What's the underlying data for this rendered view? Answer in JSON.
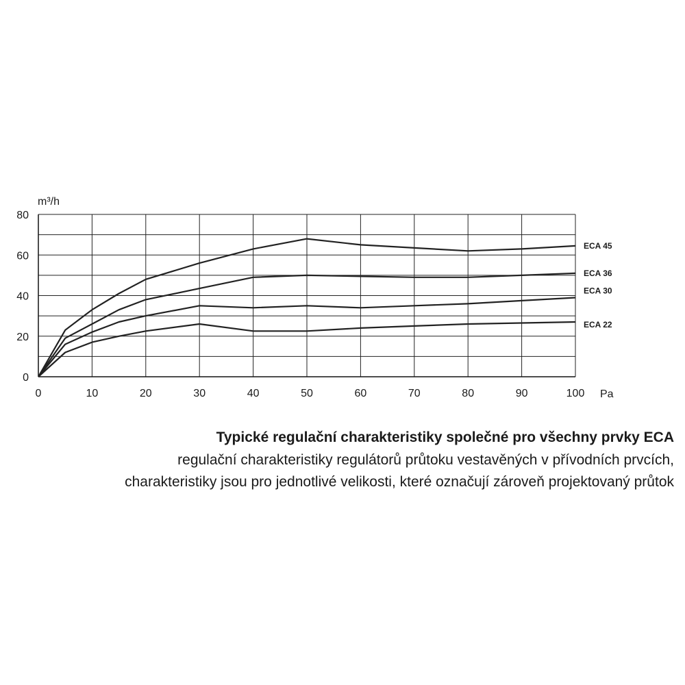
{
  "chart_data": {
    "type": "line",
    "ylabel": "m³/h",
    "xlabel": "Pa",
    "xlim": [
      0,
      100
    ],
    "ylim": [
      0,
      80
    ],
    "xticks": [
      0,
      10,
      20,
      30,
      40,
      50,
      60,
      70,
      80,
      90,
      100
    ],
    "yticks": [
      0,
      20,
      40,
      60,
      80
    ],
    "x_gridlines": [
      0,
      10,
      20,
      30,
      40,
      50,
      60,
      70,
      80,
      90,
      100
    ],
    "y_gridlines": [
      0,
      10,
      20,
      30,
      40,
      50,
      60,
      70,
      80
    ],
    "grid": true,
    "series": [
      {
        "name": "ECA 45",
        "points": [
          [
            0,
            0
          ],
          [
            5,
            23
          ],
          [
            10,
            33
          ],
          [
            15,
            41
          ],
          [
            20,
            48
          ],
          [
            30,
            56
          ],
          [
            40,
            63
          ],
          [
            50,
            68
          ],
          [
            60,
            65
          ],
          [
            70,
            63.5
          ],
          [
            80,
            62
          ],
          [
            90,
            63
          ],
          [
            100,
            64.5
          ]
        ]
      },
      {
        "name": "ECA 36",
        "points": [
          [
            0,
            0
          ],
          [
            5,
            19
          ],
          [
            10,
            26
          ],
          [
            15,
            33
          ],
          [
            20,
            38
          ],
          [
            30,
            43.5
          ],
          [
            40,
            49
          ],
          [
            50,
            50
          ],
          [
            60,
            49.5
          ],
          [
            70,
            49
          ],
          [
            80,
            49
          ],
          [
            90,
            50
          ],
          [
            100,
            51
          ]
        ]
      },
      {
        "name": "ECA 30",
        "points": [
          [
            0,
            0
          ],
          [
            5,
            16
          ],
          [
            10,
            22
          ],
          [
            15,
            27
          ],
          [
            20,
            30
          ],
          [
            30,
            35
          ],
          [
            40,
            34
          ],
          [
            50,
            35
          ],
          [
            60,
            34
          ],
          [
            70,
            35
          ],
          [
            80,
            36
          ],
          [
            90,
            37.5
          ],
          [
            100,
            39
          ]
        ]
      },
      {
        "name": "ECA 22",
        "points": [
          [
            0,
            0
          ],
          [
            5,
            12
          ],
          [
            10,
            17
          ],
          [
            15,
            20
          ],
          [
            20,
            22.5
          ],
          [
            30,
            26
          ],
          [
            40,
            22.5
          ],
          [
            50,
            22.5
          ],
          [
            60,
            24
          ],
          [
            70,
            25
          ],
          [
            80,
            26
          ],
          [
            90,
            26.5
          ],
          [
            100,
            27
          ]
        ]
      }
    ]
  },
  "caption": {
    "title": "Typické regulační charakteristiky společné pro všechny prvky ECA",
    "line1": "regulační charakteristiky regulátorů průtoku vestavěných v přívodních prvcích,",
    "line2": "charakteristiky jsou pro jednotlivé velikosti, které označují zároveň projektovaný průtok"
  }
}
